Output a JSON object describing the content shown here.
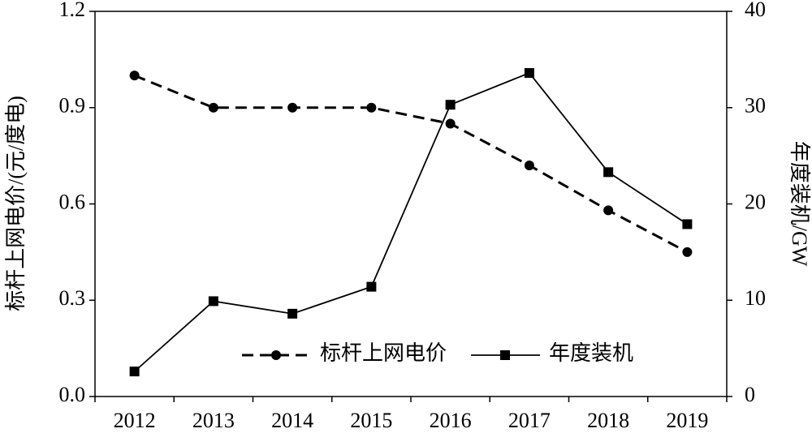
{
  "chart_data": {
    "type": "line",
    "categories": [
      "2012",
      "2013",
      "2014",
      "2015",
      "2016",
      "2017",
      "2018",
      "2019"
    ],
    "ylabel": "标杆上网电价/(元/度电)",
    "y2label": "年度装机/GW",
    "ylim": [
      0,
      1.2
    ],
    "yticks": [
      {
        "value": 0,
        "label": "0.0"
      },
      0.3,
      0.6,
      0.9,
      1.2
    ],
    "y2lim": [
      0,
      40
    ],
    "y2ticks": [
      0,
      10,
      20,
      30,
      40
    ],
    "legend": "lower center",
    "series": [
      {
        "name": "标杆上网电价",
        "color": "#000000",
        "line_style": "dashed",
        "marker": "circle",
        "values": [
          1.0,
          0.9,
          0.9,
          0.9,
          0.85,
          0.72,
          0.58,
          0.45
        ]
      },
      {
        "name": "年度装机",
        "color": "#000000",
        "line_style": "solid",
        "marker": "square",
        "axis": "y2",
        "values": [
          2.6,
          9.9,
          8.6,
          11.4,
          30.3,
          33.6,
          23.3,
          17.9
        ]
      }
    ]
  }
}
